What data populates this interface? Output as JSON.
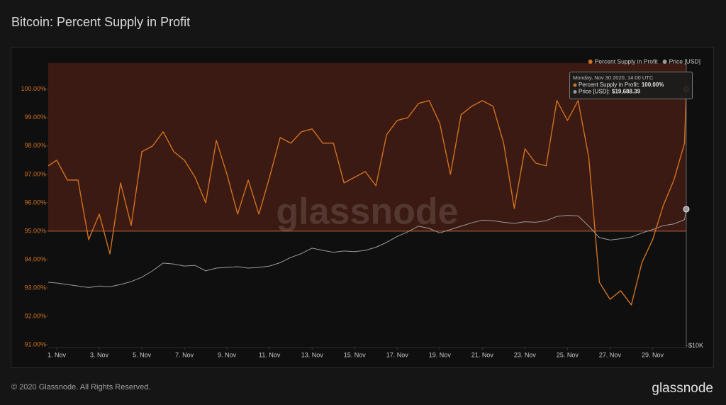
{
  "title": "Bitcoin: Percent Supply in Profit",
  "footer": "© 2020 Glassnode. All Rights Reserved.",
  "logo": "glassnode",
  "chart_data": {
    "type": "line",
    "watermark": "glassnode",
    "x": [
      0.6,
      1,
      1.5,
      2,
      2.5,
      3,
      3.5,
      4,
      4.5,
      5,
      5.5,
      6,
      6.5,
      7,
      7.5,
      8,
      8.5,
      9,
      9.5,
      10,
      10.5,
      11,
      11.5,
      12,
      12.5,
      13,
      13.5,
      14,
      14.5,
      15,
      15.5,
      16,
      16.5,
      17,
      17.5,
      18,
      18.5,
      19,
      19.5,
      20,
      20.5,
      21,
      21.5,
      22,
      22.5,
      23,
      23.5,
      24,
      24.5,
      25,
      25.5,
      26,
      26.5,
      27,
      27.5,
      28,
      28.5,
      29,
      29.5,
      30,
      30.5,
      30.583
    ],
    "xlim": [
      0.6,
      30.583
    ],
    "xticks": [
      {
        "value": 1,
        "label": "1. Nov"
      },
      {
        "value": 3,
        "label": "3. Nov"
      },
      {
        "value": 5,
        "label": "5. Nov"
      },
      {
        "value": 7,
        "label": "7. Nov"
      },
      {
        "value": 9,
        "label": "9. Nov"
      },
      {
        "value": 11,
        "label": "11. Nov"
      },
      {
        "value": 13,
        "label": "13. Nov"
      },
      {
        "value": 15,
        "label": "15. Nov"
      },
      {
        "value": 17,
        "label": "17. Nov"
      },
      {
        "value": 19,
        "label": "19. Nov"
      },
      {
        "value": 21,
        "label": "21. Nov"
      },
      {
        "value": 23,
        "label": "23. Nov"
      },
      {
        "value": 25,
        "label": "25. Nov"
      },
      {
        "value": 27,
        "label": "27. Nov"
      },
      {
        "value": 29,
        "label": "29. Nov"
      }
    ],
    "ylim": [
      90.9,
      100.92
    ],
    "yticks": [
      {
        "value": 91,
        "label": "91.00%"
      },
      {
        "value": 92,
        "label": "92.00%"
      },
      {
        "value": 93,
        "label": "93.00%"
      },
      {
        "value": 94,
        "label": "94.00%"
      },
      {
        "value": 95,
        "label": "95.00%"
      },
      {
        "value": 96,
        "label": "96.00%"
      },
      {
        "value": 97,
        "label": "97.00%"
      },
      {
        "value": 98,
        "label": "98.00%"
      },
      {
        "value": 99,
        "label": "99.00%"
      },
      {
        "value": 100,
        "label": "100.00%"
      }
    ],
    "y2lim": [
      9910,
      40650
    ],
    "y2ticks": [
      {
        "value": 10000,
        "label": "$10K"
      }
    ],
    "y2log": true,
    "threshold": 95,
    "shade_color": "#3a1a12",
    "grid": false,
    "legend": "top-right",
    "series": [
      {
        "name": "Percent Supply in Profit",
        "color": "#d2711f",
        "values": [
          97.3,
          97.5,
          96.8,
          96.8,
          94.7,
          95.6,
          94.2,
          96.7,
          95.2,
          97.8,
          98.0,
          98.5,
          97.8,
          97.5,
          96.9,
          96.0,
          98.2,
          97.0,
          95.6,
          96.8,
          95.6,
          96.9,
          98.3,
          98.1,
          98.5,
          98.6,
          98.1,
          98.1,
          96.7,
          96.9,
          97.1,
          96.6,
          98.4,
          98.9,
          99.0,
          99.5,
          99.6,
          98.8,
          97.0,
          99.1,
          99.4,
          99.6,
          99.4,
          98.1,
          95.8,
          97.9,
          97.4,
          97.3,
          99.6,
          98.9,
          99.6,
          97.6,
          93.2,
          92.6,
          92.9,
          92.4,
          93.9,
          94.7,
          95.9,
          96.8,
          98.1,
          100.0
        ]
      },
      {
        "name": "Price [USD]",
        "color": "#9a9a9a",
        "axis": "y2",
        "values": [
          13700,
          13650,
          13550,
          13450,
          13350,
          13450,
          13400,
          13550,
          13750,
          14050,
          14500,
          15070,
          15000,
          14850,
          14900,
          14500,
          14700,
          14750,
          14800,
          14700,
          14750,
          14850,
          15100,
          15500,
          15800,
          16230,
          16050,
          15900,
          16000,
          15950,
          16050,
          16300,
          16700,
          17200,
          17600,
          18100,
          17900,
          17500,
          17800,
          18100,
          18400,
          18650,
          18600,
          18450,
          18350,
          18500,
          18450,
          18600,
          19000,
          19100,
          19050,
          18100,
          17100,
          16900,
          17000,
          17150,
          17500,
          17800,
          18150,
          18300,
          18700,
          19688.39
        ]
      }
    ],
    "tooltip": {
      "date": "Monday, Nov 30 2020, 14:00 UTC",
      "items": [
        {
          "label": "Percent Supply in Profit:",
          "value": "100.00%"
        },
        {
          "label": "Price [USD]:",
          "value": "$19,688.39"
        }
      ]
    }
  }
}
